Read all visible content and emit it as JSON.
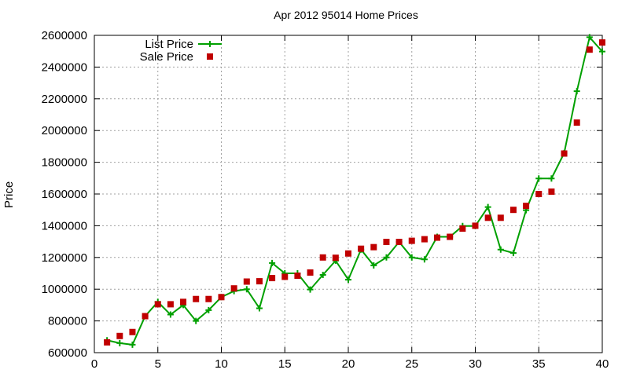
{
  "chart_data": {
    "type": "line",
    "title": "Apr 2012 95014 Home Prices",
    "xlabel": "",
    "ylabel": "Price",
    "xlim": [
      0,
      40
    ],
    "ylim": [
      600000,
      2600000
    ],
    "x_ticks": [
      0,
      5,
      10,
      15,
      20,
      25,
      30,
      35,
      40
    ],
    "y_ticks": [
      600000,
      800000,
      1000000,
      1200000,
      1400000,
      1600000,
      1800000,
      2000000,
      2200000,
      2400000,
      2600000
    ],
    "x_tick_labels": [
      "0",
      "5",
      "10",
      "15",
      "20",
      "25",
      "30",
      "35",
      "40"
    ],
    "y_tick_labels": [
      "600000",
      "800000",
      "1000000",
      "1200000",
      "1400000",
      "1600000",
      "1800000",
      "2000000",
      "2200000",
      "2400000",
      "2600000"
    ],
    "grid": true,
    "legend_position": "top-left",
    "x": [
      1,
      2,
      3,
      4,
      5,
      6,
      7,
      8,
      9,
      10,
      11,
      12,
      13,
      14,
      15,
      16,
      17,
      18,
      19,
      20,
      21,
      22,
      23,
      24,
      25,
      26,
      27,
      28,
      29,
      30,
      31,
      32,
      33,
      34,
      35,
      36,
      37,
      38,
      39,
      40
    ],
    "series": [
      {
        "name": "List Price",
        "style": "line-cross",
        "color": "#00a000",
        "values": [
          678000,
          660000,
          650000,
          830000,
          920000,
          840000,
          900000,
          800000,
          868000,
          950000,
          988000,
          1000000,
          880000,
          1165000,
          1100000,
          1100000,
          998000,
          1090000,
          1180000,
          1060000,
          1250000,
          1150000,
          1200000,
          1298000,
          1200000,
          1188000,
          1330000,
          1330000,
          1398000,
          1398000,
          1518000,
          1250000,
          1228000,
          1498000,
          1698000,
          1698000,
          1858000,
          2248000,
          2588000,
          2498000
        ]
      },
      {
        "name": "Sale Price",
        "style": "square",
        "color": "#c00000",
        "values": [
          665000,
          705000,
          730000,
          830000,
          905000,
          905000,
          920000,
          938000,
          938000,
          950000,
          1005000,
          1048000,
          1050000,
          1070000,
          1078000,
          1085000,
          1105000,
          1200000,
          1198000,
          1225000,
          1255000,
          1265000,
          1298000,
          1298000,
          1305000,
          1315000,
          1325000,
          1330000,
          1382000,
          1400000,
          1450000,
          1450000,
          1500000,
          1525000,
          1600000,
          1615000,
          1855000,
          2050000,
          2510000,
          2555000
        ]
      }
    ]
  }
}
